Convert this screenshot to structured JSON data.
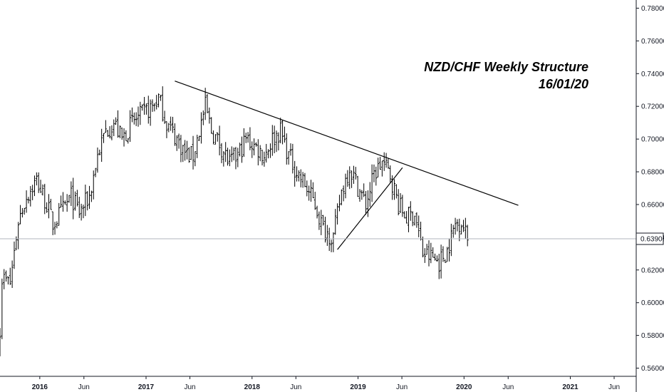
{
  "chart_data": {
    "type": "ohlc",
    "title_line1": "NZD/CHF Weekly Structure",
    "title_line2": "16/01/20",
    "symbol": "NZD/CHF",
    "timeframe": "Weekly",
    "current_price": 0.63906,
    "current_price_label": "0.63906",
    "y_axis": {
      "min": 0.555,
      "max": 0.785,
      "ticks": [
        0.56,
        0.58,
        0.6,
        0.62,
        0.64,
        0.66,
        0.68,
        0.7,
        0.72,
        0.74,
        0.76,
        0.78
      ],
      "tick_labels": [
        "0.56000",
        "0.58000",
        "0.60000",
        "0.62000",
        "0.64000",
        "0.66000",
        "0.68000",
        "0.70000",
        "0.72000",
        "0.74000",
        "0.76000",
        "0.78000"
      ]
    },
    "x_axis": {
      "start": "2015-08-17",
      "end": "2021-08-16",
      "ticks": [
        {
          "date": "2016-01-01",
          "label": "2016",
          "major": true
        },
        {
          "date": "2016-06-01",
          "label": "Jun",
          "major": false
        },
        {
          "date": "2017-01-01",
          "label": "2017",
          "major": true
        },
        {
          "date": "2017-06-01",
          "label": "Jun",
          "major": false
        },
        {
          "date": "2018-01-01",
          "label": "2018",
          "major": true
        },
        {
          "date": "2018-06-01",
          "label": "Jun",
          "major": false
        },
        {
          "date": "2019-01-01",
          "label": "2019",
          "major": true
        },
        {
          "date": "2019-06-01",
          "label": "Jun",
          "major": false
        },
        {
          "date": "2020-01-01",
          "label": "2020",
          "major": true
        },
        {
          "date": "2020-06-01",
          "label": "Jun",
          "major": false
        },
        {
          "date": "2021-01-01",
          "label": "2021",
          "major": true
        },
        {
          "date": "2021-06-01",
          "label": "Jun",
          "major": false
        }
      ]
    },
    "anchors": [
      [
        "2015-08-17",
        0.585
      ],
      [
        "2015-08-24",
        0.615
      ],
      [
        "2015-09-21",
        0.612
      ],
      [
        "2015-10-19",
        0.65
      ],
      [
        "2015-11-16",
        0.665
      ],
      [
        "2015-12-21",
        0.675
      ],
      [
        "2016-01-25",
        0.66
      ],
      [
        "2016-02-15",
        0.648
      ],
      [
        "2016-03-14",
        0.655
      ],
      [
        "2016-04-18",
        0.665
      ],
      [
        "2016-05-16",
        0.655
      ],
      [
        "2016-06-20",
        0.665
      ],
      [
        "2016-07-18",
        0.69
      ],
      [
        "2016-08-15",
        0.705
      ],
      [
        "2016-09-12",
        0.71
      ],
      [
        "2016-10-10",
        0.7
      ],
      [
        "2016-11-14",
        0.71
      ],
      [
        "2016-12-19",
        0.715
      ],
      [
        "2017-01-23",
        0.72
      ],
      [
        "2017-02-13",
        0.725
      ],
      [
        "2017-03-13",
        0.71
      ],
      [
        "2017-04-17",
        0.7
      ],
      [
        "2017-05-22",
        0.69
      ],
      [
        "2017-06-12",
        0.69
      ],
      [
        "2017-07-03",
        0.705
      ],
      [
        "2017-07-24",
        0.72
      ],
      [
        "2017-08-14",
        0.705
      ],
      [
        "2017-09-18",
        0.695
      ],
      [
        "2017-10-16",
        0.685
      ],
      [
        "2017-11-13",
        0.69
      ],
      [
        "2017-12-11",
        0.7
      ],
      [
        "2018-01-15",
        0.695
      ],
      [
        "2018-02-12",
        0.69
      ],
      [
        "2018-03-12",
        0.7
      ],
      [
        "2018-04-09",
        0.705
      ],
      [
        "2018-05-07",
        0.69
      ],
      [
        "2018-06-04",
        0.68
      ],
      [
        "2018-07-02",
        0.672
      ],
      [
        "2018-08-06",
        0.66
      ],
      [
        "2018-09-03",
        0.645
      ],
      [
        "2018-10-08",
        0.64
      ],
      [
        "2018-11-05",
        0.668
      ],
      [
        "2018-12-03",
        0.683
      ],
      [
        "2019-01-07",
        0.668
      ],
      [
        "2019-01-28",
        0.66
      ],
      [
        "2019-02-25",
        0.678
      ],
      [
        "2019-03-25",
        0.686
      ],
      [
        "2019-04-22",
        0.678
      ],
      [
        "2019-05-20",
        0.66
      ],
      [
        "2019-06-17",
        0.652
      ],
      [
        "2019-07-15",
        0.655
      ],
      [
        "2019-08-12",
        0.63
      ],
      [
        "2019-09-09",
        0.628
      ],
      [
        "2019-10-07",
        0.625
      ],
      [
        "2019-11-04",
        0.632
      ],
      [
        "2019-12-02",
        0.648
      ],
      [
        "2019-12-23",
        0.65
      ],
      [
        "2020-01-13",
        0.639
      ]
    ],
    "trend_lines": [
      {
        "name": "descending-resistance",
        "from": [
          "2017-04-10",
          0.7355
        ],
        "to": [
          "2020-07-06",
          0.6595
        ]
      },
      {
        "name": "rising-support",
        "from": [
          "2018-10-22",
          0.6325
        ],
        "to": [
          "2019-06-03",
          0.6825
        ]
      }
    ],
    "price_line_color": "#b2b5be",
    "bar_color": "#000000",
    "tag_border": "#131722"
  }
}
